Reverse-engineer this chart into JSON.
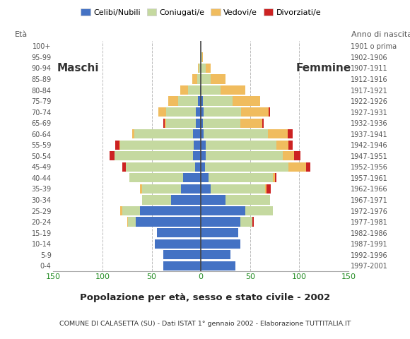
{
  "age_groups": [
    "0-4",
    "5-9",
    "10-14",
    "15-19",
    "20-24",
    "25-29",
    "30-34",
    "35-39",
    "40-44",
    "45-49",
    "50-54",
    "55-59",
    "60-64",
    "65-69",
    "70-74",
    "75-79",
    "80-84",
    "85-89",
    "90-94",
    "95-99",
    "100+"
  ],
  "birth_years": [
    "1997-2001",
    "1992-1996",
    "1987-1991",
    "1982-1986",
    "1977-1981",
    "1972-1976",
    "1967-1971",
    "1962-1966",
    "1957-1961",
    "1952-1956",
    "1947-1951",
    "1942-1946",
    "1937-1941",
    "1932-1936",
    "1927-1931",
    "1922-1926",
    "1917-1921",
    "1912-1916",
    "1907-1911",
    "1902-1906",
    "1901 o prima"
  ],
  "male": {
    "celibe": [
      38,
      38,
      47,
      45,
      66,
      62,
      30,
      20,
      18,
      6,
      8,
      7,
      8,
      5,
      5,
      3,
      1,
      0,
      0,
      0,
      0
    ],
    "coniugato": [
      0,
      0,
      0,
      0,
      8,
      18,
      30,
      40,
      55,
      70,
      80,
      75,
      60,
      30,
      30,
      20,
      12,
      4,
      2,
      0,
      0
    ],
    "vedovo": [
      0,
      0,
      0,
      0,
      1,
      2,
      0,
      2,
      0,
      0,
      0,
      1,
      2,
      2,
      8,
      10,
      8,
      5,
      1,
      0,
      0
    ],
    "divorziato": [
      0,
      0,
      0,
      0,
      0,
      0,
      0,
      0,
      0,
      4,
      5,
      4,
      0,
      1,
      0,
      0,
      0,
      0,
      0,
      0,
      0
    ]
  },
  "female": {
    "nubile": [
      35,
      30,
      40,
      38,
      40,
      45,
      25,
      10,
      8,
      4,
      5,
      5,
      3,
      2,
      3,
      2,
      0,
      0,
      0,
      0,
      0
    ],
    "coniugata": [
      0,
      0,
      0,
      0,
      12,
      28,
      45,
      55,
      65,
      85,
      78,
      72,
      65,
      38,
      38,
      30,
      20,
      10,
      5,
      1,
      0
    ],
    "vedova": [
      0,
      0,
      0,
      0,
      0,
      0,
      0,
      2,
      2,
      18,
      12,
      12,
      20,
      22,
      28,
      28,
      25,
      15,
      5,
      1,
      0
    ],
    "divorziata": [
      0,
      0,
      0,
      0,
      2,
      0,
      0,
      4,
      2,
      4,
      6,
      4,
      5,
      2,
      1,
      0,
      0,
      0,
      0,
      0,
      0
    ]
  },
  "colors": {
    "celibe": "#4472c4",
    "coniugato": "#c5d9a0",
    "vedovo": "#f0bc5e",
    "divorziato": "#cc2222"
  },
  "title": "Popolazione per età, sesso e stato civile - 2002",
  "subtitle": "COMUNE DI CALASETTA (SU) - Dati ISTAT 1° gennaio 2002 - Elaborazione TUTTITALIA.IT",
  "label_maschi": "Maschi",
  "label_femmine": "Femmine",
  "legend_labels": [
    "Celibi/Nubili",
    "Coniugati/e",
    "Vedovi/e",
    "Divorziati/e"
  ],
  "xlim": 150,
  "bg_color": "#ffffff",
  "grid_color": "#aaaaaa"
}
